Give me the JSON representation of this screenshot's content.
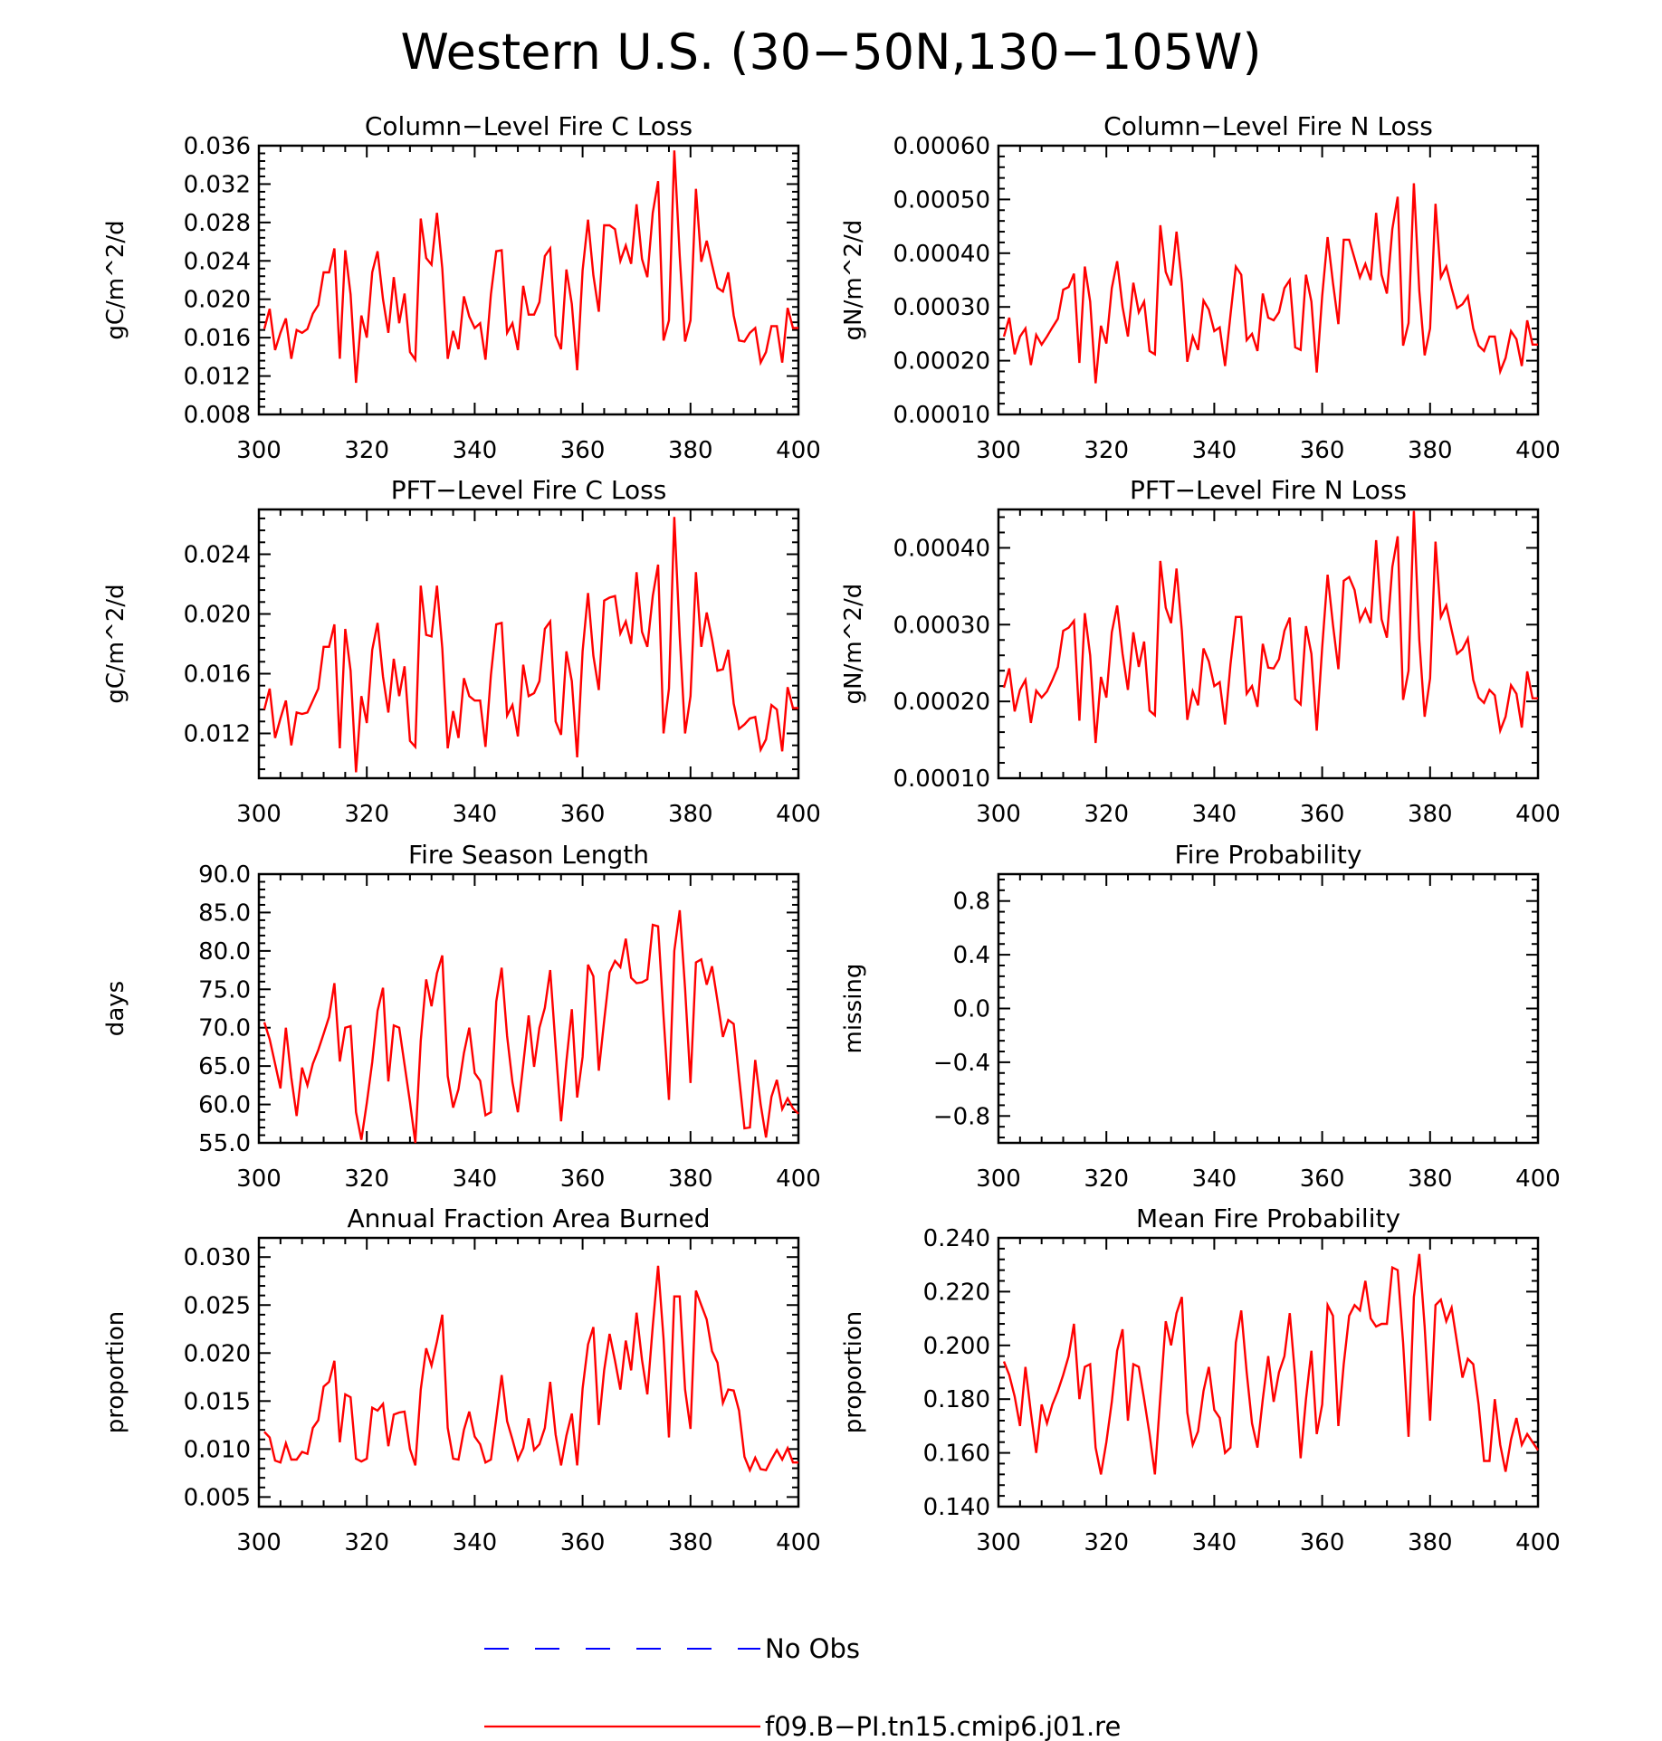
{
  "figure_title": "Western U.S. (30-50N,130-105W)",
  "legend": [
    {
      "label": "No Obs",
      "color": "#0000ff",
      "dash": true
    },
    {
      "label": "f09.B-PI.tn15.cmip6.j01.re",
      "color": "#ff0000",
      "dash": false
    }
  ],
  "chart_data": [
    {
      "type": "line",
      "title": "Column-Level Fire C Loss",
      "ylabel": "gC/m^2/d",
      "xlim": [
        300,
        400
      ],
      "ylim": [
        0.008,
        0.036
      ],
      "x_ticks": [
        "300",
        "320",
        "340",
        "360",
        "380",
        "400"
      ],
      "y_ticks": [
        "0.008",
        "0.012",
        "0.016",
        "0.020",
        "0.024",
        "0.028",
        "0.032",
        "0.036"
      ],
      "series": [
        {
          "color": "#ff0000",
          "x_start": 301,
          "values": [
            0.0169,
            0.019,
            0.0147,
            0.0165,
            0.018,
            0.0138,
            0.0168,
            0.0165,
            0.0169,
            0.0185,
            0.0194,
            0.0228,
            0.0228,
            0.0253,
            0.0138,
            0.0251,
            0.0205,
            0.0113,
            0.0183,
            0.016,
            0.0228,
            0.025,
            0.02,
            0.0165,
            0.0223,
            0.0175,
            0.0206,
            0.0145,
            0.0137,
            0.0284,
            0.0243,
            0.0236,
            0.029,
            0.0232,
            0.0138,
            0.0167,
            0.0148,
            0.0203,
            0.0182,
            0.017,
            0.0175,
            0.0137,
            0.0205,
            0.025,
            0.0251,
            0.0165,
            0.0175,
            0.0147,
            0.0214,
            0.0184,
            0.0184,
            0.0197,
            0.0245,
            0.0253,
            0.0162,
            0.0148,
            0.0231,
            0.0195,
            0.0126,
            0.023,
            0.0283,
            0.0225,
            0.0187,
            0.0277,
            0.0277,
            0.0273,
            0.024,
            0.0256,
            0.0237,
            0.0299,
            0.0242,
            0.0223,
            0.029,
            0.0323,
            0.0157,
            0.0178,
            0.0355,
            0.0245,
            0.0156,
            0.0178,
            0.0315,
            0.0239,
            0.0261,
            0.0236,
            0.0212,
            0.0208,
            0.0228,
            0.0183,
            0.0157,
            0.0156,
            0.0165,
            0.017,
            0.0134,
            0.0145,
            0.0172,
            0.0172,
            0.0134,
            0.0191,
            0.017,
            0.017
          ]
        }
      ]
    },
    {
      "type": "line",
      "title": "Column-Level Fire N Loss",
      "ylabel": "gN/m^2/d",
      "xlim": [
        300,
        400
      ],
      "ylim": [
        0.0001,
        0.0006
      ],
      "x_ticks": [
        "300",
        "320",
        "340",
        "360",
        "380",
        "400"
      ],
      "y_ticks": [
        "0.00010",
        "0.00020",
        "0.00030",
        "0.00040",
        "0.00050",
        "0.00060"
      ],
      "series": [
        {
          "color": "#ff0000",
          "x_start": 301,
          "values": [
            0.000245,
            0.00028,
            0.000212,
            0.000245,
            0.00026,
            0.000192,
            0.000248,
            0.00023,
            0.000245,
            0.000262,
            0.000278,
            0.000332,
            0.000337,
            0.000362,
            0.000196,
            0.000375,
            0.00031,
            0.000158,
            0.000265,
            0.000232,
            0.000335,
            0.000385,
            0.0003,
            0.000245,
            0.000345,
            0.00029,
            0.00031,
            0.000218,
            0.000212,
            0.000452,
            0.000365,
            0.00034,
            0.00044,
            0.000345,
            0.000198,
            0.000245,
            0.00022,
            0.000312,
            0.000295,
            0.000255,
            0.000262,
            0.00019,
            0.000285,
            0.000375,
            0.00036,
            0.000238,
            0.00025,
            0.000218,
            0.000325,
            0.00028,
            0.000275,
            0.00029,
            0.000335,
            0.00035,
            0.000225,
            0.00022,
            0.00036,
            0.00031,
            0.000178,
            0.00032,
            0.00043,
            0.000345,
            0.000268,
            0.000425,
            0.000425,
            0.00039,
            0.000355,
            0.00038,
            0.00035,
            0.000475,
            0.00036,
            0.000325,
            0.000445,
            0.000505,
            0.000228,
            0.00027,
            0.00053,
            0.00033,
            0.00021,
            0.00026,
            0.000492,
            0.000355,
            0.000375,
            0.000335,
            0.000298,
            0.000305,
            0.00032,
            0.00026,
            0.000228,
            0.000218,
            0.000245,
            0.000245,
            0.00018,
            0.000205,
            0.000255,
            0.00024,
            0.00019,
            0.000275,
            0.00023,
            0.00023
          ]
        }
      ]
    },
    {
      "type": "line",
      "title": "PFT-Level Fire C Loss",
      "ylabel": "gC/m^2/d",
      "xlim": [
        300,
        400
      ],
      "ylim": [
        0.009,
        0.027
      ],
      "x_ticks": [
        "300",
        "320",
        "340",
        "360",
        "380",
        "400"
      ],
      "y_ticks": [
        "0.012",
        "0.016",
        "0.020",
        "0.024"
      ],
      "series": [
        {
          "color": "#ff0000",
          "x_start": 301,
          "values": [
            0.0136,
            0.015,
            0.0117,
            0.013,
            0.0142,
            0.0112,
            0.0134,
            0.0133,
            0.0134,
            0.0142,
            0.015,
            0.0178,
            0.0178,
            0.0193,
            0.011,
            0.019,
            0.0162,
            0.0094,
            0.0145,
            0.0127,
            0.0176,
            0.0194,
            0.0158,
            0.0134,
            0.017,
            0.0145,
            0.0165,
            0.0115,
            0.0111,
            0.0219,
            0.0186,
            0.0185,
            0.0219,
            0.0177,
            0.011,
            0.0135,
            0.0117,
            0.0157,
            0.0145,
            0.0142,
            0.0142,
            0.0111,
            0.0159,
            0.0193,
            0.0194,
            0.0132,
            0.0139,
            0.0118,
            0.0166,
            0.0145,
            0.0147,
            0.0155,
            0.019,
            0.0195,
            0.0128,
            0.0119,
            0.0175,
            0.0155,
            0.0104,
            0.0175,
            0.0214,
            0.0172,
            0.0149,
            0.0209,
            0.0211,
            0.0212,
            0.0187,
            0.0195,
            0.018,
            0.0228,
            0.0188,
            0.0178,
            0.0212,
            0.0233,
            0.012,
            0.015,
            0.0265,
            0.0185,
            0.012,
            0.0145,
            0.0228,
            0.0178,
            0.0201,
            0.0183,
            0.0162,
            0.0163,
            0.0176,
            0.014,
            0.0123,
            0.0126,
            0.013,
            0.0131,
            0.0109,
            0.0116,
            0.0139,
            0.0136,
            0.0108,
            0.0151,
            0.0137,
            0.0137
          ]
        }
      ]
    },
    {
      "type": "line",
      "title": "PFT-Level Fire N Loss",
      "ylabel": "gN/m^2/d",
      "xlim": [
        300,
        400
      ],
      "ylim": [
        0.0001,
        0.00045
      ],
      "x_ticks": [
        "300",
        "320",
        "340",
        "360",
        "380",
        "400"
      ],
      "y_ticks": [
        "0.00010",
        "0.00020",
        "0.00030",
        "0.00040"
      ],
      "series": [
        {
          "color": "#ff0000",
          "x_start": 301,
          "values": [
            0.000218,
            0.000243,
            0.000187,
            0.000215,
            0.000228,
            0.000172,
            0.000214,
            0.000205,
            0.000213,
            0.000228,
            0.000245,
            0.000292,
            0.000296,
            0.000305,
            0.000175,
            0.000315,
            0.00026,
            0.000146,
            0.000232,
            0.000205,
            0.00029,
            0.000325,
            0.000262,
            0.000215,
            0.00029,
            0.000245,
            0.000278,
            0.000188,
            0.000182,
            0.000383,
            0.000322,
            0.000302,
            0.000373,
            0.000292,
            0.000176,
            0.000213,
            0.000195,
            0.000269,
            0.000252,
            0.00022,
            0.000225,
            0.00017,
            0.000248,
            0.00031,
            0.00031,
            0.00021,
            0.00022,
            0.000193,
            0.000275,
            0.000244,
            0.000243,
            0.000255,
            0.000292,
            0.000309,
            0.000203,
            0.000196,
            0.000298,
            0.000262,
            0.000162,
            0.00027,
            0.000365,
            0.0003,
            0.000242,
            0.000357,
            0.000362,
            0.000345,
            0.000305,
            0.00032,
            0.000302,
            0.00041,
            0.000307,
            0.000283,
            0.000375,
            0.000415,
            0.000202,
            0.00024,
            0.000448,
            0.00028,
            0.00018,
            0.00023,
            0.000408,
            0.00031,
            0.000325,
            0.000293,
            0.000262,
            0.000268,
            0.000282,
            0.000228,
            0.000205,
            0.000198,
            0.000215,
            0.000208,
            0.000162,
            0.00018,
            0.000221,
            0.00021,
            0.000166,
            0.000239,
            0.000204,
            0.000204
          ]
        }
      ]
    },
    {
      "type": "line",
      "title": "Fire Season Length",
      "ylabel": "days",
      "xlim": [
        300,
        400
      ],
      "ylim": [
        55,
        90
      ],
      "x_ticks": [
        "300",
        "320",
        "340",
        "360",
        "380",
        "400"
      ],
      "y_ticks": [
        "55.0",
        "60.0",
        "65.0",
        "70.0",
        "75.0",
        "80.0",
        "85.0",
        "90.0"
      ],
      "series": [
        {
          "color": "#ff0000",
          "x_start": 301,
          "values": [
            70.7,
            68.5,
            65.3,
            62.1,
            70.0,
            63.5,
            58.5,
            64.8,
            62.5,
            65.3,
            67.1,
            69.2,
            71.4,
            75.8,
            65.6,
            70.0,
            70.2,
            59.0,
            55.4,
            60.2,
            65.5,
            72.2,
            75.2,
            63.0,
            70.3,
            70.0,
            65.2,
            60.3,
            55.0,
            68.3,
            76.3,
            72.8,
            77.1,
            79.4,
            63.7,
            59.6,
            62.0,
            66.7,
            70.0,
            64.1,
            63.1,
            58.6,
            59.0,
            73.4,
            77.8,
            68.9,
            62.9,
            59.0,
            65.2,
            71.6,
            64.9,
            70.0,
            72.6,
            77.5,
            67.5,
            57.8,
            65.6,
            72.4,
            60.9,
            66.2,
            78.2,
            76.7,
            64.4,
            70.9,
            77.2,
            78.7,
            77.9,
            81.6,
            76.5,
            75.8,
            75.9,
            76.3,
            83.4,
            83.2,
            71.5,
            60.6,
            80.0,
            85.3,
            75.1,
            62.8,
            78.5,
            78.9,
            75.6,
            78.0,
            73.5,
            68.8,
            71.0,
            70.5,
            63.6,
            56.9,
            57.0,
            65.8,
            60.0,
            55.7,
            61.0,
            63.2,
            59.4,
            60.8,
            59.5,
            58.8
          ]
        }
      ]
    },
    {
      "type": "line",
      "title": "Fire Probability",
      "ylabel": "missing",
      "xlim": [
        300,
        400
      ],
      "ylim": [
        -1.0,
        1.0
      ],
      "x_ticks": [
        "300",
        "320",
        "340",
        "360",
        "380",
        "400"
      ],
      "y_ticks": [
        "-0.8",
        "-0.4",
        "0.0",
        "0.4",
        "0.8"
      ],
      "series": []
    },
    {
      "type": "line",
      "title": "Annual Fraction Area Burned",
      "ylabel": "proportion",
      "xlim": [
        300,
        400
      ],
      "ylim": [
        0.004,
        0.032
      ],
      "x_ticks": [
        "300",
        "320",
        "340",
        "360",
        "380",
        "400"
      ],
      "y_ticks": [
        "0.005",
        "0.010",
        "0.015",
        "0.020",
        "0.025",
        "0.030"
      ],
      "series": [
        {
          "color": "#ff0000",
          "x_start": 301,
          "values": [
            0.0118,
            0.0112,
            0.0088,
            0.0086,
            0.0106,
            0.0089,
            0.0089,
            0.0097,
            0.0095,
            0.0122,
            0.013,
            0.0165,
            0.017,
            0.0192,
            0.0107,
            0.0157,
            0.0154,
            0.009,
            0.0087,
            0.009,
            0.0143,
            0.014,
            0.0147,
            0.0103,
            0.0136,
            0.0138,
            0.0139,
            0.01,
            0.0083,
            0.0162,
            0.0205,
            0.0187,
            0.0212,
            0.024,
            0.0122,
            0.009,
            0.0089,
            0.012,
            0.0139,
            0.0113,
            0.0105,
            0.0086,
            0.0089,
            0.0132,
            0.0177,
            0.0129,
            0.011,
            0.0089,
            0.0101,
            0.0132,
            0.0099,
            0.0105,
            0.0122,
            0.017,
            0.0115,
            0.0083,
            0.0114,
            0.0137,
            0.0083,
            0.0163,
            0.0209,
            0.0227,
            0.0125,
            0.0182,
            0.022,
            0.0192,
            0.0162,
            0.0213,
            0.0182,
            0.0242,
            0.0193,
            0.0157,
            0.0228,
            0.0291,
            0.0215,
            0.0112,
            0.0259,
            0.0259,
            0.0162,
            0.0121,
            0.0265,
            0.025,
            0.0235,
            0.0202,
            0.019,
            0.0148,
            0.0162,
            0.0161,
            0.014,
            0.0092,
            0.0078,
            0.0091,
            0.0079,
            0.0078,
            0.0089,
            0.0099,
            0.0089,
            0.0101,
            0.0086,
            0.0086
          ]
        }
      ]
    },
    {
      "type": "line",
      "title": "Mean Fire Probability",
      "ylabel": "proportion",
      "xlim": [
        300,
        400
      ],
      "ylim": [
        0.14,
        0.24
      ],
      "x_ticks": [
        "300",
        "320",
        "340",
        "360",
        "380",
        "400"
      ],
      "y_ticks": [
        "0.140",
        "0.160",
        "0.180",
        "0.200",
        "0.220",
        "0.240"
      ],
      "series": [
        {
          "color": "#ff0000",
          "x_start": 301,
          "values": [
            0.194,
            0.189,
            0.181,
            0.17,
            0.192,
            0.175,
            0.16,
            0.178,
            0.171,
            0.178,
            0.183,
            0.189,
            0.196,
            0.208,
            0.18,
            0.192,
            0.193,
            0.162,
            0.152,
            0.164,
            0.179,
            0.198,
            0.206,
            0.172,
            0.193,
            0.192,
            0.18,
            0.167,
            0.152,
            0.181,
            0.209,
            0.2,
            0.212,
            0.218,
            0.175,
            0.163,
            0.168,
            0.183,
            0.192,
            0.176,
            0.173,
            0.16,
            0.162,
            0.201,
            0.213,
            0.19,
            0.171,
            0.162,
            0.18,
            0.196,
            0.179,
            0.19,
            0.196,
            0.212,
            0.188,
            0.158,
            0.18,
            0.198,
            0.167,
            0.178,
            0.215,
            0.211,
            0.17,
            0.193,
            0.211,
            0.215,
            0.213,
            0.224,
            0.21,
            0.207,
            0.208,
            0.208,
            0.229,
            0.228,
            0.201,
            0.166,
            0.218,
            0.234,
            0.207,
            0.172,
            0.215,
            0.217,
            0.209,
            0.214,
            0.201,
            0.188,
            0.195,
            0.193,
            0.178,
            0.157,
            0.157,
            0.18,
            0.163,
            0.153,
            0.165,
            0.173,
            0.163,
            0.167,
            0.164,
            0.161
          ]
        }
      ]
    }
  ]
}
